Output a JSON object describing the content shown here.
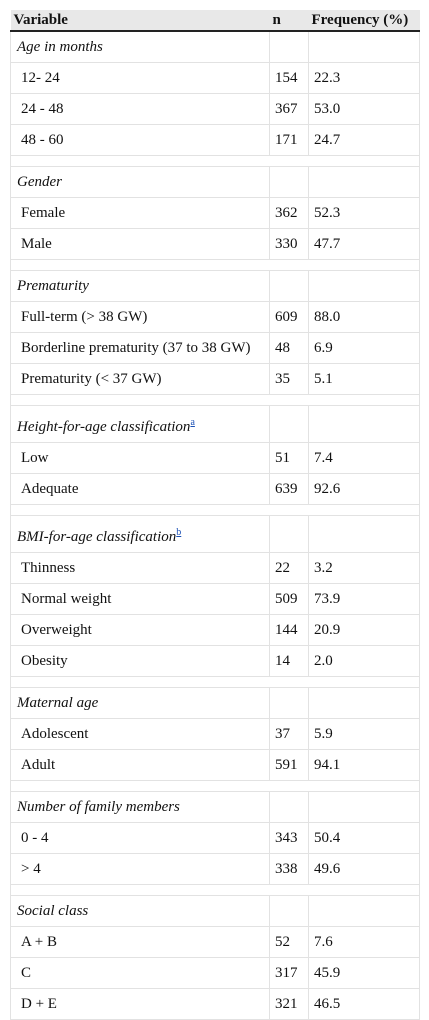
{
  "header": {
    "variable": "Variable",
    "n": "n",
    "frequency": "Frequency (%)"
  },
  "groups": [
    {
      "title": "Age in months",
      "sup": "",
      "rows": [
        {
          "label": "12- 24",
          "n": "154",
          "freq": "22.3"
        },
        {
          "label": "24 - 48",
          "n": "367",
          "freq": "53.0"
        },
        {
          "label": "48 - 60",
          "n": "171",
          "freq": "24.7"
        }
      ]
    },
    {
      "title": "Gender",
      "sup": "",
      "rows": [
        {
          "label": "Female",
          "n": "362",
          "freq": "52.3"
        },
        {
          "label": "Male",
          "n": "330",
          "freq": "47.7"
        }
      ]
    },
    {
      "title": "Prematurity",
      "sup": "",
      "rows": [
        {
          "label": "Full-term (> 38 GW)",
          "n": "609",
          "freq": "88.0"
        },
        {
          "label": "Borderline prematurity (37 to 38 GW)",
          "n": "48",
          "freq": "6.9"
        },
        {
          "label": "Prematurity (< 37 GW)",
          "n": "35",
          "freq": "5.1"
        }
      ]
    },
    {
      "title": "Height-for-age classification",
      "sup": "a",
      "rows": [
        {
          "label": "Low",
          "n": "51",
          "freq": "7.4"
        },
        {
          "label": "Adequate",
          "n": "639",
          "freq": "92.6"
        }
      ]
    },
    {
      "title": "BMI-for-age classification",
      "sup": "b",
      "rows": [
        {
          "label": "Thinness",
          "n": "22",
          "freq": "3.2"
        },
        {
          "label": "Normal weight",
          "n": "509",
          "freq": "73.9"
        },
        {
          "label": "Overweight",
          "n": "144",
          "freq": "20.9"
        },
        {
          "label": "Obesity",
          "n": "14",
          "freq": "2.0"
        }
      ]
    },
    {
      "title": "Maternal age",
      "sup": "",
      "rows": [
        {
          "label": "Adolescent",
          "n": "37",
          "freq": "5.9"
        },
        {
          "label": "Adult",
          "n": "591",
          "freq": "94.1"
        }
      ]
    },
    {
      "title": "Number of family members",
      "sup": "",
      "rows": [
        {
          "label": "0 - 4",
          "n": "343",
          "freq": "50.4"
        },
        {
          "label": "> 4",
          "n": "338",
          "freq": "49.6"
        }
      ]
    },
    {
      "title": "Social class",
      "sup": "",
      "rows": [
        {
          "label": "A + B",
          "n": "52",
          "freq": "7.6"
        },
        {
          "label": "C",
          "n": "317",
          "freq": "45.9"
        },
        {
          "label": "D + E",
          "n": "321",
          "freq": "46.5"
        }
      ]
    }
  ]
}
